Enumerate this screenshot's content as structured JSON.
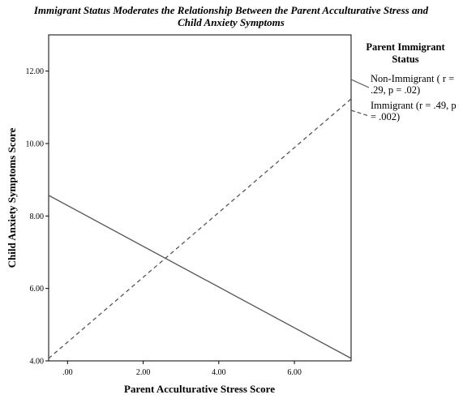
{
  "chart_data": {
    "type": "line",
    "title_lines": [
      "Immigrant Status Moderates the Relationship Between the Parent Acculturative Stress and",
      "Child Anxiety Symptoms"
    ],
    "xlabel": "Parent Acculturative Stress Score",
    "ylabel": "Child Anxiety Symptoms Score",
    "xlim": [
      -0.5,
      7.5
    ],
    "ylim": [
      4.0,
      13.0
    ],
    "x_ticks": [
      0,
      2,
      4,
      6
    ],
    "x_tick_labels": [
      ".00",
      "2.00",
      "4.00",
      "6.00"
    ],
    "y_ticks": [
      4,
      6,
      8,
      10,
      12
    ],
    "y_tick_labels": [
      "4.00",
      "6.00",
      "8.00",
      "10.00",
      "12.00"
    ],
    "grid": false,
    "legend_placement": "right",
    "legend_title_lines": [
      "Parent Immigrant",
      "Status"
    ],
    "series": [
      {
        "label_lines": [
          "Non-Immigrant ( r =",
          ".29, p = .02)"
        ],
        "style": "solid",
        "color": "#555555",
        "x": [
          -0.5,
          7.5
        ],
        "y": [
          8.57,
          4.07
        ]
      },
      {
        "label_lines": [
          "Immigrant (r = .49, p",
          "= .002)"
        ],
        "style": "dashed",
        "color": "#555555",
        "x": [
          -0.5,
          7.5
        ],
        "y": [
          4.07,
          11.23
        ]
      }
    ]
  }
}
